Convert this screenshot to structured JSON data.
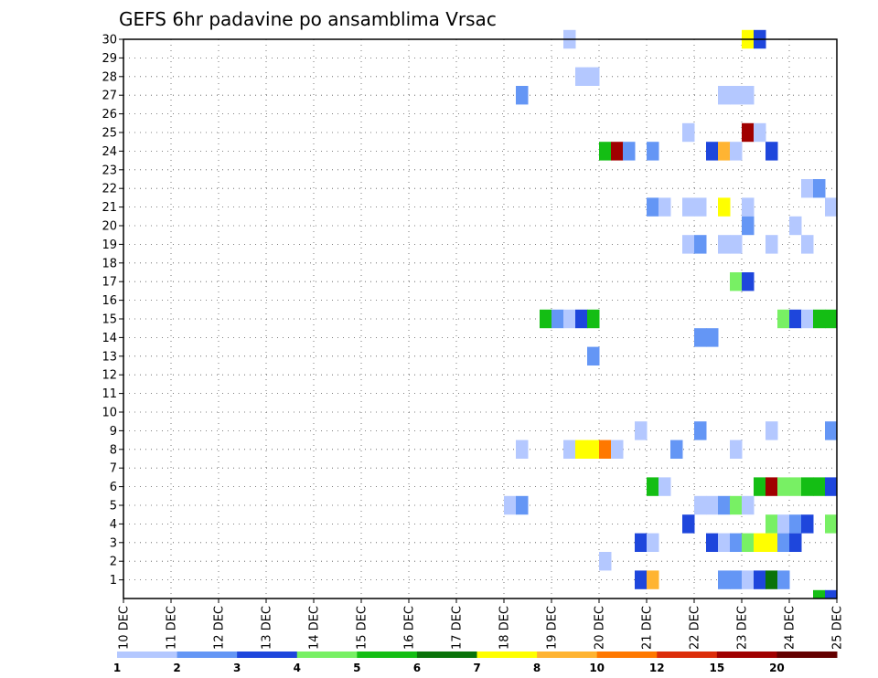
{
  "chart_data": {
    "type": "heatmap",
    "title": "GEFS 6hr padavine po ansamblima Vrsac",
    "xlabel": "",
    "ylabel": "",
    "x_tick_labels": [
      "10 DEC",
      "11 DEC",
      "12 DEC",
      "13 DEC",
      "14 DEC",
      "15 DEC",
      "16 DEC",
      "17 DEC",
      "18 DEC",
      "19 DEC",
      "20 DEC",
      "21 DEC",
      "22 DEC",
      "23 DEC",
      "24 DEC",
      "25 DEC"
    ],
    "y_tick_labels": [
      "1",
      "2",
      "3",
      "4",
      "5",
      "6",
      "7",
      "8",
      "9",
      "10",
      "11",
      "12",
      "13",
      "14",
      "15",
      "16",
      "17",
      "18",
      "19",
      "20",
      "21",
      "22",
      "23",
      "24",
      "25",
      "26",
      "27",
      "28",
      "29",
      "30"
    ],
    "xlim_days": [
      10,
      25
    ],
    "ylim_members": [
      0,
      30
    ],
    "grid": true,
    "colorbar": {
      "labels": [
        "1",
        "2",
        "3",
        "4",
        "5",
        "6",
        "7",
        "8",
        "10",
        "12",
        "15",
        "20"
      ],
      "colors": [
        "#b4c8ff",
        "#6496f5",
        "#1e46dc",
        "#78f064",
        "#14be14",
        "#0a730a",
        "#ffff00",
        "#ffb432",
        "#ff7800",
        "#dc2d0a",
        "#a00000",
        "#640000"
      ]
    },
    "cells": [
      {
        "m": 30,
        "d": 19.25,
        "c": 1
      },
      {
        "m": 30,
        "d": 23.0,
        "c": 7
      },
      {
        "m": 30,
        "d": 23.25,
        "c": 3
      },
      {
        "m": 28,
        "d": 19.5,
        "c": 1
      },
      {
        "m": 28,
        "d": 19.75,
        "c": 1
      },
      {
        "m": 27,
        "d": 18.25,
        "c": 2
      },
      {
        "m": 27,
        "d": 22.5,
        "c": 1
      },
      {
        "m": 27,
        "d": 22.75,
        "c": 1
      },
      {
        "m": 27,
        "d": 23.0,
        "c": 1
      },
      {
        "m": 25,
        "d": 21.75,
        "c": 1
      },
      {
        "m": 25,
        "d": 23.0,
        "c": 11
      },
      {
        "m": 25,
        "d": 23.25,
        "c": 1
      },
      {
        "m": 24,
        "d": 20.0,
        "c": 5
      },
      {
        "m": 24,
        "d": 20.25,
        "c": 11
      },
      {
        "m": 24,
        "d": 20.5,
        "c": 2
      },
      {
        "m": 24,
        "d": 21.0,
        "c": 2
      },
      {
        "m": 24,
        "d": 22.25,
        "c": 3
      },
      {
        "m": 24,
        "d": 22.5,
        "c": 8
      },
      {
        "m": 24,
        "d": 22.75,
        "c": 1
      },
      {
        "m": 24,
        "d": 23.5,
        "c": 3
      },
      {
        "m": 22,
        "d": 24.25,
        "c": 1
      },
      {
        "m": 22,
        "d": 24.5,
        "c": 2
      },
      {
        "m": 21,
        "d": 21.0,
        "c": 2
      },
      {
        "m": 21,
        "d": 21.25,
        "c": 1
      },
      {
        "m": 21,
        "d": 21.75,
        "c": 1
      },
      {
        "m": 21,
        "d": 22.0,
        "c": 1
      },
      {
        "m": 21,
        "d": 22.5,
        "c": 7
      },
      {
        "m": 21,
        "d": 23.0,
        "c": 1
      },
      {
        "m": 21,
        "d": 24.75,
        "c": 1
      },
      {
        "m": 20,
        "d": 23.0,
        "c": 2
      },
      {
        "m": 20,
        "d": 24.0,
        "c": 1
      },
      {
        "m": 19,
        "d": 21.75,
        "c": 1
      },
      {
        "m": 19,
        "d": 22.0,
        "c": 2
      },
      {
        "m": 19,
        "d": 22.5,
        "c": 1
      },
      {
        "m": 19,
        "d": 22.75,
        "c": 1
      },
      {
        "m": 19,
        "d": 23.5,
        "c": 1
      },
      {
        "m": 19,
        "d": 24.25,
        "c": 1
      },
      {
        "m": 17,
        "d": 22.75,
        "c": 4
      },
      {
        "m": 17,
        "d": 23.0,
        "c": 3
      },
      {
        "m": 15,
        "d": 18.75,
        "c": 5
      },
      {
        "m": 15,
        "d": 19.0,
        "c": 2
      },
      {
        "m": 15,
        "d": 19.25,
        "c": 1
      },
      {
        "m": 15,
        "d": 19.5,
        "c": 3
      },
      {
        "m": 15,
        "d": 19.75,
        "c": 5
      },
      {
        "m": 15,
        "d": 23.75,
        "c": 4
      },
      {
        "m": 15,
        "d": 24.0,
        "c": 3
      },
      {
        "m": 15,
        "d": 24.25,
        "c": 1
      },
      {
        "m": 15,
        "d": 24.5,
        "c": 5
      },
      {
        "m": 15,
        "d": 24.75,
        "c": 5
      },
      {
        "m": 14,
        "d": 22.0,
        "c": 2
      },
      {
        "m": 14,
        "d": 22.25,
        "c": 2
      },
      {
        "m": 13,
        "d": 19.75,
        "c": 2
      },
      {
        "m": 9,
        "d": 20.75,
        "c": 1
      },
      {
        "m": 9,
        "d": 22.0,
        "c": 2
      },
      {
        "m": 9,
        "d": 23.5,
        "c": 1
      },
      {
        "m": 9,
        "d": 24.75,
        "c": 2
      },
      {
        "m": 8,
        "d": 18.25,
        "c": 1
      },
      {
        "m": 8,
        "d": 19.25,
        "c": 1
      },
      {
        "m": 8,
        "d": 19.5,
        "c": 7
      },
      {
        "m": 8,
        "d": 19.75,
        "c": 7
      },
      {
        "m": 8,
        "d": 20.0,
        "c": 9
      },
      {
        "m": 8,
        "d": 20.25,
        "c": 1
      },
      {
        "m": 8,
        "d": 21.5,
        "c": 2
      },
      {
        "m": 8,
        "d": 22.75,
        "c": 1
      },
      {
        "m": 6,
        "d": 21.0,
        "c": 5
      },
      {
        "m": 6,
        "d": 21.25,
        "c": 1
      },
      {
        "m": 6,
        "d": 23.25,
        "c": 5
      },
      {
        "m": 6,
        "d": 23.5,
        "c": 11
      },
      {
        "m": 6,
        "d": 23.75,
        "c": 4
      },
      {
        "m": 6,
        "d": 24.0,
        "c": 4
      },
      {
        "m": 6,
        "d": 24.25,
        "c": 5
      },
      {
        "m": 6,
        "d": 24.5,
        "c": 5
      },
      {
        "m": 6,
        "d": 24.75,
        "c": 3
      },
      {
        "m": 5,
        "d": 18.0,
        "c": 1
      },
      {
        "m": 5,
        "d": 18.25,
        "c": 2
      },
      {
        "m": 5,
        "d": 22.0,
        "c": 1
      },
      {
        "m": 5,
        "d": 22.25,
        "c": 1
      },
      {
        "m": 5,
        "d": 22.5,
        "c": 2
      },
      {
        "m": 5,
        "d": 22.75,
        "c": 4
      },
      {
        "m": 5,
        "d": 23.0,
        "c": 1
      },
      {
        "m": 4,
        "d": 21.75,
        "c": 3
      },
      {
        "m": 4,
        "d": 23.5,
        "c": 4
      },
      {
        "m": 4,
        "d": 23.75,
        "c": 1
      },
      {
        "m": 4,
        "d": 24.0,
        "c": 2
      },
      {
        "m": 4,
        "d": 24.25,
        "c": 3
      },
      {
        "m": 4,
        "d": 24.75,
        "c": 4
      },
      {
        "m": 3,
        "d": 20.75,
        "c": 3
      },
      {
        "m": 3,
        "d": 21.0,
        "c": 1
      },
      {
        "m": 3,
        "d": 22.25,
        "c": 3
      },
      {
        "m": 3,
        "d": 22.5,
        "c": 1
      },
      {
        "m": 3,
        "d": 22.75,
        "c": 2
      },
      {
        "m": 3,
        "d": 23.0,
        "c": 4
      },
      {
        "m": 3,
        "d": 23.25,
        "c": 7
      },
      {
        "m": 3,
        "d": 23.5,
        "c": 7
      },
      {
        "m": 3,
        "d": 23.75,
        "c": 2
      },
      {
        "m": 3,
        "d": 24.0,
        "c": 3
      },
      {
        "m": 2,
        "d": 20.0,
        "c": 1
      },
      {
        "m": 1,
        "d": 20.75,
        "c": 3
      },
      {
        "m": 1,
        "d": 21.0,
        "c": 8
      },
      {
        "m": 1,
        "d": 22.5,
        "c": 2
      },
      {
        "m": 1,
        "d": 22.75,
        "c": 2
      },
      {
        "m": 1,
        "d": 23.0,
        "c": 1
      },
      {
        "m": 1,
        "d": 23.25,
        "c": 3
      },
      {
        "m": 1,
        "d": 23.5,
        "c": 6
      },
      {
        "m": 1,
        "d": 23.75,
        "c": 2
      },
      {
        "m": 0,
        "d": 24.5,
        "c": 5
      },
      {
        "m": 0,
        "d": 24.75,
        "c": 3
      }
    ]
  }
}
